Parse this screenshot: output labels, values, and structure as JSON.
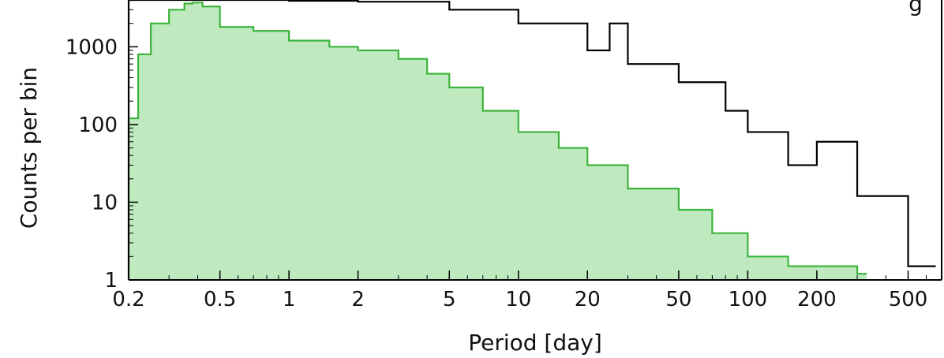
{
  "chart_data": {
    "type": "histogram",
    "title": "",
    "xlabel": "Period [day]",
    "ylabel": "Counts per bin",
    "x_scale": "log",
    "y_scale": "log",
    "xlim": [
      0.2,
      700
    ],
    "ylim": [
      1,
      4000
    ],
    "x_ticks": [
      "0.2",
      "0.5",
      "1",
      "2",
      "5",
      "10",
      "20",
      "50",
      "100",
      "200",
      "500"
    ],
    "x_tick_values": [
      0.2,
      0.5,
      1,
      2,
      5,
      10,
      20,
      50,
      100,
      200,
      500
    ],
    "y_ticks": [
      "1",
      "10",
      "100",
      "1000"
    ],
    "y_tick_values": [
      1,
      10,
      100,
      1000
    ],
    "grid": false,
    "legend_text_partial": "g",
    "series": [
      {
        "style": "step-outline",
        "color": "#000000",
        "x": [
          0.2,
          0.4,
          1.0,
          2.0,
          5.0,
          10.0,
          20.0,
          25.0,
          30.0,
          50.0,
          80.0,
          100.0,
          150.0,
          200.0,
          300.0,
          500.0,
          600.0
        ],
        "y": [
          4000,
          4000,
          3900,
          3800,
          3000,
          2000,
          900,
          2000,
          600,
          350,
          150,
          80,
          30,
          60,
          12,
          1.5,
          1.5
        ]
      },
      {
        "style": "filled-step",
        "color": "#3cb43c",
        "fill": "#bfeabf",
        "x": [
          0.2,
          0.22,
          0.25,
          0.3,
          0.35,
          0.38,
          0.42,
          0.5,
          0.7,
          1.0,
          1.5,
          2.0,
          3.0,
          4.0,
          5.0,
          7.0,
          10.0,
          15.0,
          20.0,
          30.0,
          50.0,
          70.0,
          100.0,
          150.0,
          300.0
        ],
        "y": [
          120,
          800,
          2000,
          3000,
          3600,
          3700,
          3300,
          1800,
          1600,
          1200,
          1000,
          900,
          700,
          450,
          300,
          150,
          80,
          50,
          30,
          15,
          8,
          4,
          2,
          1.5,
          1.2
        ]
      }
    ]
  }
}
